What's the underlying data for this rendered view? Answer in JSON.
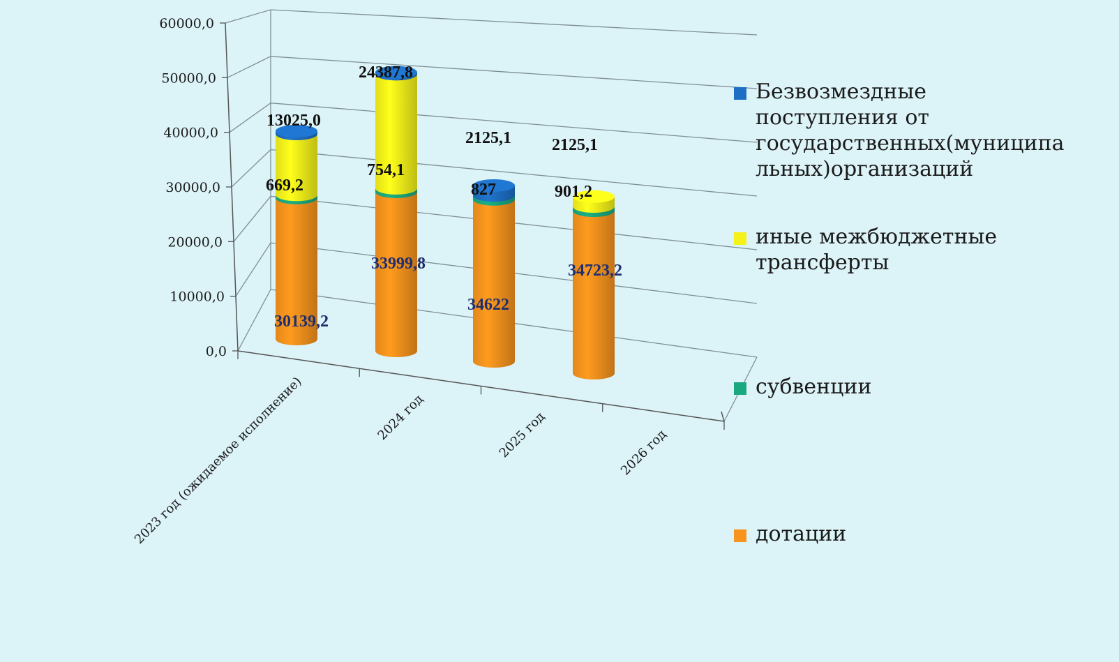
{
  "chart_data": {
    "type": "bar",
    "stacked": true,
    "three_d": true,
    "categories": [
      "2023 год (ожидаемое исполнение)",
      "2024 год",
      "2025 год",
      "2026 год"
    ],
    "series": [
      {
        "name": "дотации",
        "color": "#f7941d",
        "values": [
          30139.2,
          33999.8,
          34622,
          34723.2
        ],
        "labels": [
          "30139,2",
          "33999,8",
          "34622",
          "34723,2"
        ],
        "label_style": "navy"
      },
      {
        "name": "субвенции",
        "color": "#1aa97f",
        "values": [
          669.2,
          754.1,
          827,
          901.2
        ],
        "labels": [
          "669,2",
          "754,1",
          "827",
          "901,2"
        ],
        "label_style": "dark"
      },
      {
        "name": "иные межбюджетные трансферты",
        "color": "#f5f21a",
        "values": [
          13025.0,
          24387.8,
          0,
          2125.1
        ],
        "labels": [
          "13025,0",
          "24387,8",
          "",
          "2125,1"
        ],
        "label_style": "dark"
      },
      {
        "name": "Безвозмездные поступления от государственных(муниципальных)организаций",
        "color": "#1e6fc4",
        "values": [
          600,
          400,
          2125.1,
          0
        ],
        "labels": [
          "",
          "",
          "2125,1",
          ""
        ],
        "label_style": "dark"
      }
    ],
    "ylim": [
      0,
      60000
    ],
    "yticks": [
      "0,0",
      "10000,0",
      "20000,0",
      "30000,0",
      "40000,0",
      "50000,0",
      "60000,0"
    ],
    "grid": true,
    "legend_position": "right",
    "legend": [
      {
        "lines": [
          "Безвозмездные",
          "поступления от",
          "государственных(муниципа",
          "льных)организаций"
        ],
        "color": "#1e6fc4"
      },
      {
        "lines": [
          "иные межбюджетные",
          "трансферты"
        ],
        "color": "#f5f21a"
      },
      {
        "lines": [
          "субвенции"
        ],
        "color": "#1aa97f"
      },
      {
        "lines": [
          "дотации"
        ],
        "color": "#f7941d"
      }
    ]
  }
}
